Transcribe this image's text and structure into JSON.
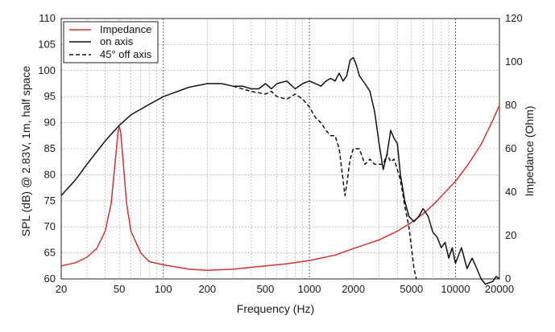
{
  "chart_data": {
    "type": "line",
    "xlabel": "Frequency (Hz)",
    "ylabel_left": "SPL (dB) @ 2.83V, 1m, half space",
    "ylabel_right": "Impedance (Ohm)",
    "x_scale": "log",
    "xlim": [
      20,
      20000
    ],
    "ylim_left": [
      60,
      110
    ],
    "ylim_right": [
      0,
      120
    ],
    "grid": true,
    "legend_position": "top-left",
    "x_tick_labels": [
      "20",
      "50",
      "100",
      "200",
      "500",
      "1000",
      "2000",
      "5000",
      "10000",
      "20000"
    ],
    "y_left_tick_labels": [
      "60",
      "65",
      "70",
      "75",
      "80",
      "85",
      "90",
      "95",
      "100",
      "105",
      "110"
    ],
    "y_right_tick_labels": [
      "0",
      "20",
      "40",
      "60",
      "80",
      "100",
      "120"
    ],
    "series": [
      {
        "name": "Impedance",
        "axis": "right",
        "color": "#d43030",
        "dash": "solid",
        "points": [
          [
            20,
            6
          ],
          [
            25,
            7.5
          ],
          [
            30,
            10
          ],
          [
            35,
            14
          ],
          [
            40,
            22
          ],
          [
            44,
            35
          ],
          [
            47,
            55
          ],
          [
            49,
            68
          ],
          [
            50,
            70
          ],
          [
            51,
            68
          ],
          [
            53,
            55
          ],
          [
            56,
            35
          ],
          [
            60,
            22
          ],
          [
            70,
            12
          ],
          [
            80,
            8
          ],
          [
            100,
            6.5
          ],
          [
            150,
            4.5
          ],
          [
            200,
            4
          ],
          [
            300,
            4.5
          ],
          [
            500,
            6
          ],
          [
            700,
            7
          ],
          [
            1000,
            8.5
          ],
          [
            1500,
            11
          ],
          [
            2000,
            14
          ],
          [
            3000,
            18
          ],
          [
            4000,
            22
          ],
          [
            5000,
            26
          ],
          [
            6000,
            30
          ],
          [
            7000,
            34
          ],
          [
            8000,
            38
          ],
          [
            10000,
            45
          ],
          [
            12000,
            52
          ],
          [
            15000,
            62
          ],
          [
            18000,
            73
          ],
          [
            20000,
            80
          ]
        ]
      },
      {
        "name": "on axis",
        "axis": "left",
        "color": "#111111",
        "dash": "solid",
        "points": [
          [
            20,
            76
          ],
          [
            25,
            79
          ],
          [
            30,
            82
          ],
          [
            40,
            86.5
          ],
          [
            50,
            89.5
          ],
          [
            60,
            91.5
          ],
          [
            80,
            93.5
          ],
          [
            100,
            95
          ],
          [
            150,
            96.8
          ],
          [
            200,
            97.5
          ],
          [
            250,
            97.5
          ],
          [
            300,
            97
          ],
          [
            350,
            97
          ],
          [
            400,
            96.5
          ],
          [
            450,
            96.5
          ],
          [
            500,
            97.5
          ],
          [
            550,
            96.5
          ],
          [
            600,
            97.5
          ],
          [
            700,
            98
          ],
          [
            800,
            96.5
          ],
          [
            900,
            97.5
          ],
          [
            1000,
            98
          ],
          [
            1100,
            97.5
          ],
          [
            1200,
            97
          ],
          [
            1300,
            98
          ],
          [
            1400,
            98.5
          ],
          [
            1500,
            98
          ],
          [
            1600,
            99.5
          ],
          [
            1700,
            98
          ],
          [
            1800,
            99
          ],
          [
            1900,
            102
          ],
          [
            2000,
            102.5
          ],
          [
            2100,
            101
          ],
          [
            2200,
            99
          ],
          [
            2400,
            97.5
          ],
          [
            2600,
            96
          ],
          [
            2800,
            92
          ],
          [
            3000,
            86
          ],
          [
            3200,
            81
          ],
          [
            3400,
            84
          ],
          [
            3600,
            88.5
          ],
          [
            3800,
            87
          ],
          [
            4000,
            86
          ],
          [
            4200,
            80
          ],
          [
            4500,
            75
          ],
          [
            4800,
            72
          ],
          [
            5200,
            71
          ],
          [
            5600,
            72
          ],
          [
            6000,
            73.5
          ],
          [
            6500,
            72
          ],
          [
            7000,
            69
          ],
          [
            7500,
            68
          ],
          [
            8000,
            66
          ],
          [
            8500,
            67
          ],
          [
            9000,
            64
          ],
          [
            9500,
            66
          ],
          [
            10000,
            63
          ],
          [
            11000,
            66
          ],
          [
            12000,
            62
          ],
          [
            13000,
            64
          ],
          [
            14000,
            62
          ],
          [
            15000,
            60
          ],
          [
            16000,
            59
          ],
          [
            18000,
            59.5
          ],
          [
            19000,
            60.5
          ],
          [
            20000,
            60
          ]
        ]
      },
      {
        "name": "45° off axis",
        "axis": "left",
        "color": "#111111",
        "dash": "dashed",
        "points": [
          [
            300,
            97
          ],
          [
            400,
            96
          ],
          [
            500,
            95.5
          ],
          [
            550,
            96
          ],
          [
            600,
            95
          ],
          [
            700,
            94.5
          ],
          [
            800,
            95.5
          ],
          [
            900,
            94.5
          ],
          [
            1000,
            93
          ],
          [
            1100,
            91
          ],
          [
            1200,
            90
          ],
          [
            1300,
            88.5
          ],
          [
            1400,
            87.5
          ],
          [
            1500,
            87.5
          ],
          [
            1600,
            85
          ],
          [
            1700,
            79
          ],
          [
            1750,
            76
          ],
          [
            1800,
            78
          ],
          [
            1900,
            83
          ],
          [
            2000,
            85
          ],
          [
            2200,
            85
          ],
          [
            2400,
            82
          ],
          [
            2600,
            83
          ],
          [
            2800,
            82
          ],
          [
            3000,
            82
          ],
          [
            3200,
            82
          ],
          [
            3400,
            84
          ],
          [
            3600,
            82.5
          ],
          [
            3800,
            83
          ],
          [
            4000,
            81
          ],
          [
            4200,
            79
          ],
          [
            4500,
            74
          ],
          [
            4800,
            70
          ],
          [
            5000,
            66
          ],
          [
            5200,
            62
          ],
          [
            5400,
            60
          ]
        ]
      }
    ]
  }
}
